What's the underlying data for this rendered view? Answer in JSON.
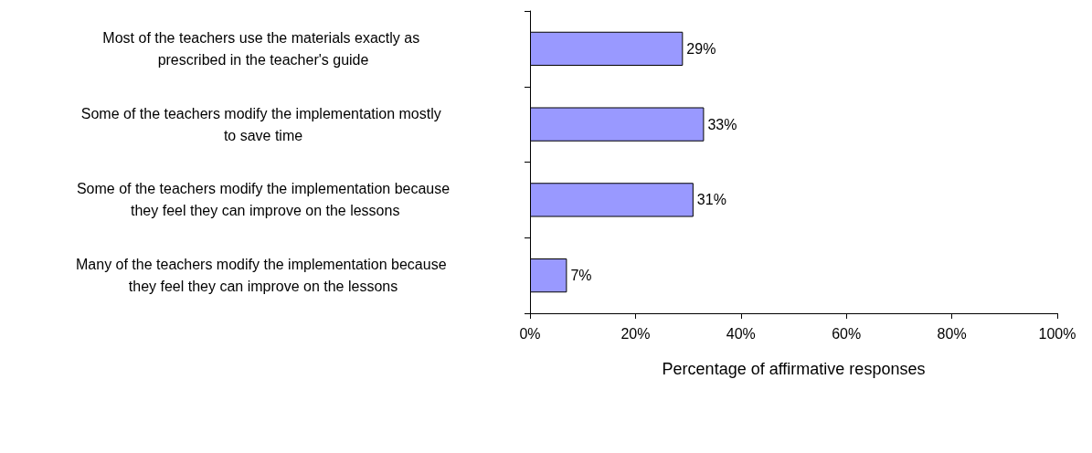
{
  "chart_data": {
    "type": "bar",
    "orientation": "horizontal",
    "xlabel": "Percentage of affirmative responses",
    "categories": [
      "Most of the teachers use the materials exactly as prescribed in the teacher's guide",
      "Some of the teachers modify the implementation mostly to save time",
      "Some of the teachers modify the implementation because they feel they can improve on the lessons",
      "Many of the teachers modify the implementation because they feel they can improve on the lessons"
    ],
    "values": [
      29,
      33,
      31,
      7
    ],
    "color": "#9999ff",
    "value_labels": [
      "29%",
      "33%",
      "31%",
      "7%"
    ],
    "xlim": [
      0,
      100
    ],
    "xticks": [
      {
        "value": 0,
        "label": "0%"
      },
      {
        "value": 20,
        "label": "20%"
      },
      {
        "value": 40,
        "label": "40%"
      },
      {
        "value": 60,
        "label": "60%"
      },
      {
        "value": 80,
        "label": "80%"
      },
      {
        "value": 100,
        "label": "100%"
      }
    ],
    "grid": false
  }
}
